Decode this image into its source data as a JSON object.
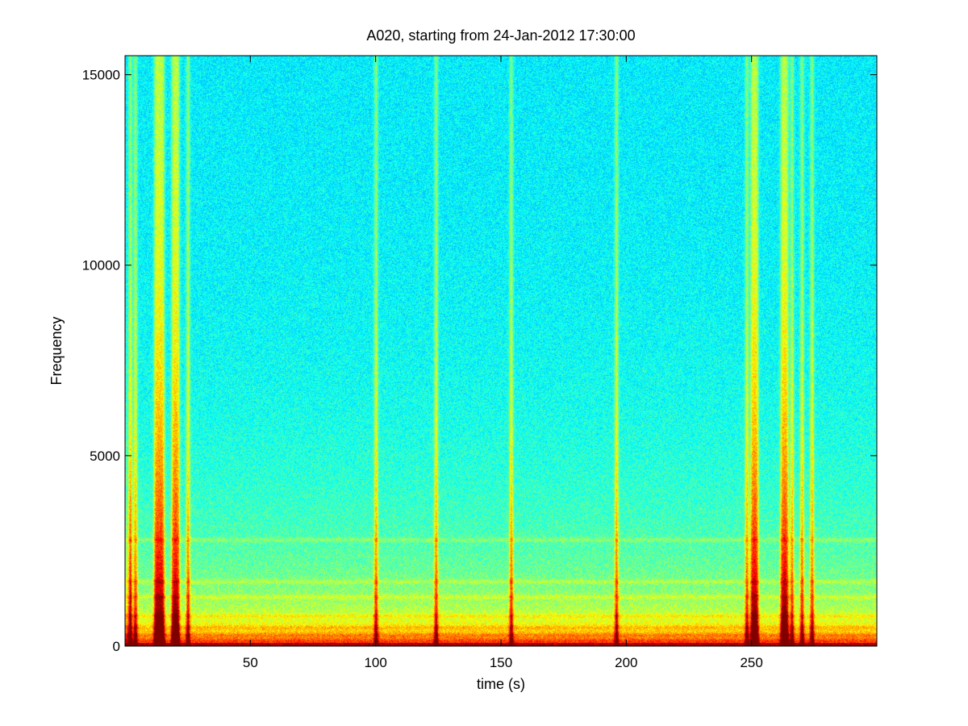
{
  "chart_data": {
    "type": "heatmap",
    "subtype": "spectrogram",
    "title": "A020, starting from 24-Jan-2012 17:30:00",
    "xlabel": "time (s)",
    "ylabel": "Frequency",
    "xlim": [
      0,
      300
    ],
    "ylim": [
      0,
      15500
    ],
    "xticks": [
      50,
      100,
      150,
      200,
      250
    ],
    "yticks": [
      0,
      5000,
      10000,
      15000
    ],
    "colormap": "jet",
    "grid": false,
    "colors": {
      "background_low_intensity": "#18d8e8",
      "mid_intensity": "#60f0a0",
      "high_intensity": "#f8f810",
      "peak_intensity": "#e81008"
    },
    "broadband_events_s": [
      2,
      4,
      12,
      13,
      14,
      15,
      19,
      20,
      21,
      25,
      100,
      124,
      154,
      196,
      248,
      250,
      251,
      252,
      262,
      263,
      264,
      266,
      270,
      274
    ],
    "low_frequency_bands_hz": [
      150,
      300,
      500,
      800,
      1300,
      1700,
      2800
    ]
  }
}
